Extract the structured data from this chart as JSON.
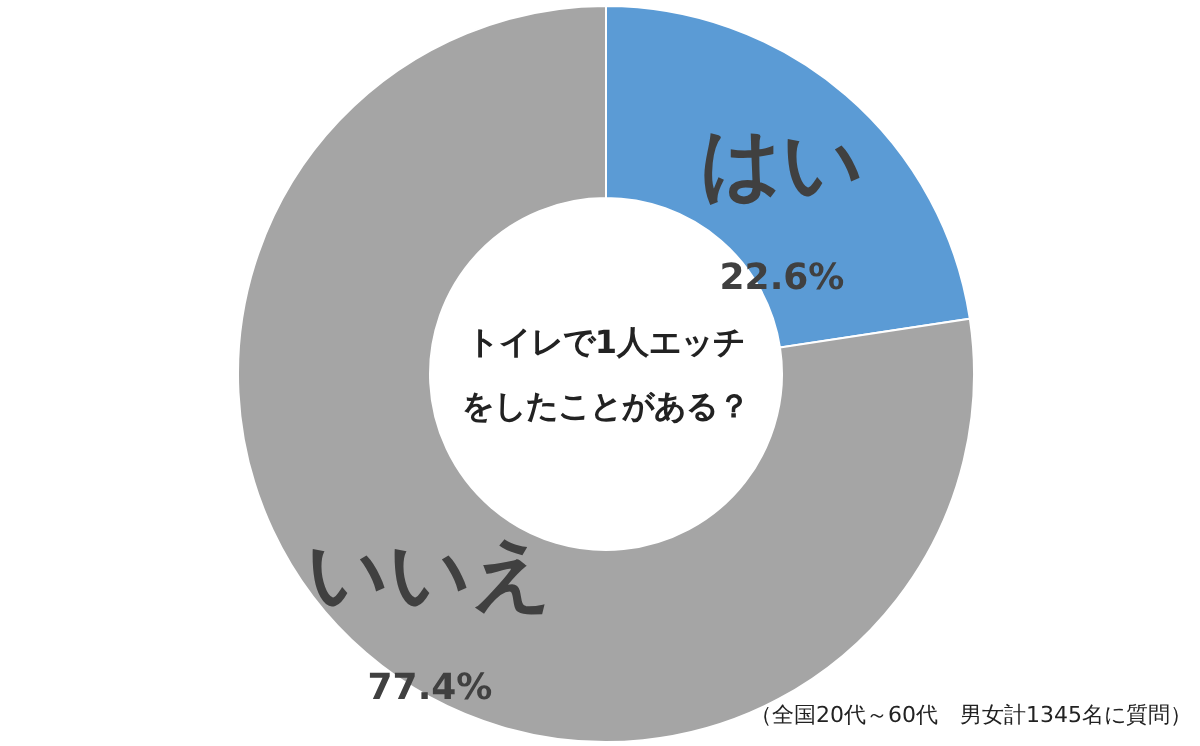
{
  "chart_data": {
    "type": "donut",
    "title": "トイレで1人エッチをしたことがある？",
    "categories": [
      "はい",
      "いいえ"
    ],
    "values": [
      22.6,
      77.4
    ],
    "colors": [
      "#5b9bd5",
      "#a5a5a5"
    ],
    "value_labels": [
      "22.6%",
      "77.4%"
    ],
    "annotations": [
      "（全国20代～60代　男女計1345名に質問）"
    ]
  }
}
